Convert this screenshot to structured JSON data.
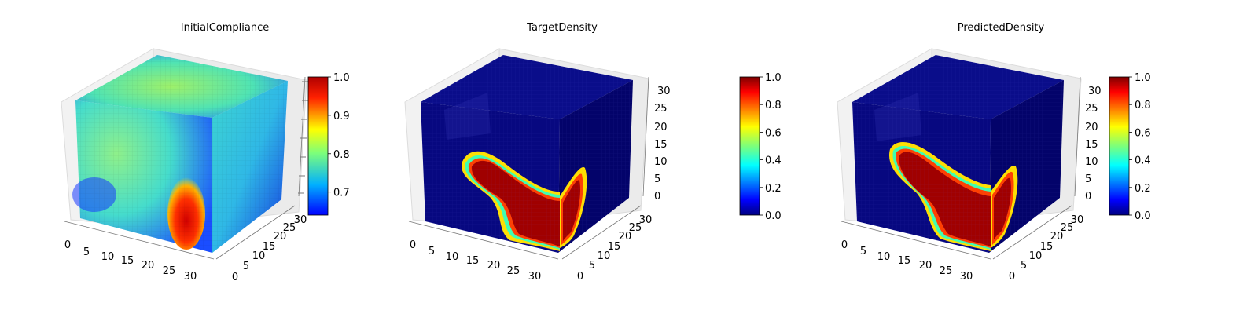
{
  "chart_data": [
    {
      "type": "voxel-3d",
      "title": "InitialCompliance",
      "colormap": "jet",
      "colorbar": {
        "min": 0.64,
        "max": 1.0,
        "ticks": [
          0.7,
          0.8,
          0.9,
          1.0
        ],
        "tick_labels": [
          "0.7",
          "0.8",
          "0.9",
          "1.0"
        ]
      },
      "axes": {
        "x": {
          "range": [
            0,
            32
          ],
          "ticks": [
            "0",
            "5",
            "10",
            "15",
            "20",
            "25",
            "30"
          ]
        },
        "y": {
          "range": [
            0,
            32
          ],
          "ticks": [
            "0",
            "5",
            "10",
            "15",
            "20",
            "25",
            "30"
          ]
        },
        "z": {
          "range": [
            0,
            32
          ],
          "ticks": []
        }
      },
      "value_range": [
        0.64,
        1.0
      ],
      "background_level": 0.8
    },
    {
      "type": "voxel-3d",
      "title": "TargetDensity",
      "colormap": "jet",
      "colorbar": {
        "min": 0.0,
        "max": 1.0,
        "ticks": [
          0.0,
          0.2,
          0.4,
          0.6,
          0.8,
          1.0
        ],
        "tick_labels": [
          "0.0",
          "0.2",
          "0.4",
          "0.6",
          "0.8",
          "1.0"
        ]
      },
      "axes": {
        "x": {
          "range": [
            0,
            32
          ],
          "ticks": [
            "0",
            "5",
            "10",
            "15",
            "20",
            "25",
            "30"
          ]
        },
        "y": {
          "range": [
            0,
            32
          ],
          "ticks": [
            "0",
            "5",
            "10",
            "15",
            "20",
            "25",
            "30"
          ]
        },
        "z": {
          "range": [
            0,
            32
          ],
          "ticks": [
            "0",
            "5",
            "10",
            "15",
            "20",
            "25",
            "30"
          ]
        }
      },
      "value_range": [
        0.0,
        1.0
      ],
      "background_level": 0.0
    },
    {
      "type": "voxel-3d",
      "title": "PredictedDensity",
      "colormap": "jet",
      "colorbar": {
        "min": 0.0,
        "max": 1.0,
        "ticks": [
          0.0,
          0.2,
          0.4,
          0.6,
          0.8,
          1.0
        ],
        "tick_labels": [
          "0.0",
          "0.2",
          "0.4",
          "0.6",
          "0.8",
          "1.0"
        ]
      },
      "axes": {
        "x": {
          "range": [
            0,
            32
          ],
          "ticks": [
            "0",
            "5",
            "10",
            "15",
            "20",
            "25",
            "30"
          ]
        },
        "y": {
          "range": [
            0,
            32
          ],
          "ticks": [
            "0",
            "5",
            "10",
            "15",
            "20",
            "25",
            "30"
          ]
        },
        "z": {
          "range": [
            0,
            32
          ],
          "ticks": [
            "0",
            "5",
            "10",
            "15",
            "20",
            "25",
            "30"
          ]
        }
      },
      "value_range": [
        0.0,
        1.0
      ],
      "background_level": 0.0
    }
  ]
}
